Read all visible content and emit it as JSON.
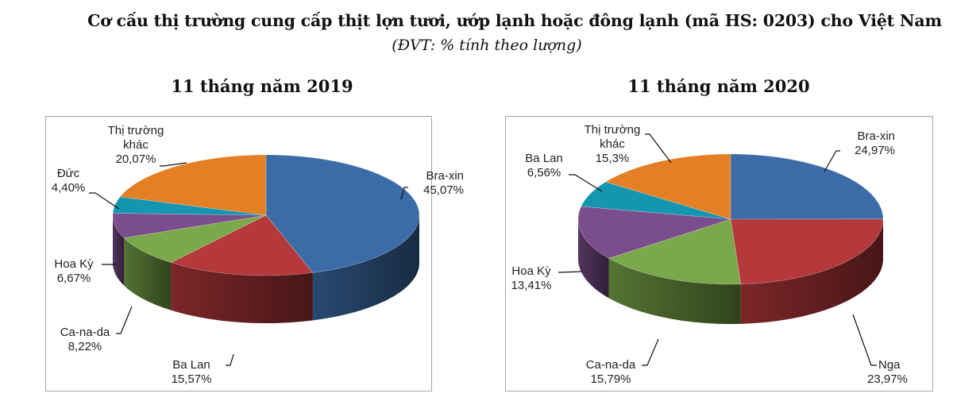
{
  "header": {
    "title": "Cơ cấu thị trường cung cấp thịt lợn tươi, ướp lạnh hoặc đông lạnh (mã HS: 0203) cho Việt Nam",
    "subtitle": "(ĐVT: % tính theo lượng)"
  },
  "colors": {
    "blue": "#3c6ca7",
    "red": "#b5383a",
    "green": "#7aa84a",
    "purple": "#7a4e8c",
    "teal": "#1496b0",
    "orange": "#e47f26",
    "frame": "#a6a6a6"
  },
  "charts": [
    {
      "title": "11 tháng năm 2019",
      "labels": [
        {
          "line1": "Bra-xin",
          "line2": "45,07%"
        },
        {
          "line1": "Ba Lan",
          "line2": "15,57%"
        },
        {
          "line1": "Ca-na-da",
          "line2": "8,22%"
        },
        {
          "line1": "Hoa Kỳ",
          "line2": "6,67%"
        },
        {
          "line1": "Đức",
          "line2": "4,40%"
        },
        {
          "line1": "Thị trường",
          "line2": "khác",
          "line3": "20,07%"
        }
      ]
    },
    {
      "title": "11 tháng năm 2020",
      "labels": [
        {
          "line1": "Bra-xin",
          "line2": "24,97%"
        },
        {
          "line1": "Nga",
          "line2": "23,97%"
        },
        {
          "line1": "Ca-na-da",
          "line2": "15,79%"
        },
        {
          "line1": "Hoa Kỳ",
          "line2": "13,41%"
        },
        {
          "line1": "Ba Lan",
          "line2": "6,56%"
        },
        {
          "line1": "Thị trường",
          "line2": "khác",
          "line3": "15,3%"
        }
      ]
    }
  ],
  "chart_data": [
    {
      "type": "pie",
      "title": "11 tháng năm 2019",
      "subtitle": "(ĐVT: % tính theo lượng)",
      "categories": [
        "Bra-xin",
        "Ba Lan",
        "Ca-na-da",
        "Hoa Kỳ",
        "Đức",
        "Thị trường khác"
      ],
      "values": [
        45.07,
        15.57,
        8.22,
        6.67,
        4.4,
        20.07
      ],
      "colors": [
        "#3c6ca7",
        "#b5383a",
        "#7aa84a",
        "#7a4e8c",
        "#1496b0",
        "#e47f26"
      ],
      "style": "3d-pie",
      "start_angle": "12 o'clock",
      "direction": "clockwise",
      "legend": "none (data labels with leader lines)"
    },
    {
      "type": "pie",
      "title": "11 tháng năm 2020",
      "subtitle": "(ĐVT: % tính theo lượng)",
      "categories": [
        "Bra-xin",
        "Nga",
        "Ca-na-da",
        "Hoa Kỳ",
        "Ba Lan",
        "Thị trường khác"
      ],
      "values": [
        24.97,
        23.97,
        15.79,
        13.41,
        6.56,
        15.3
      ],
      "colors": [
        "#3c6ca7",
        "#b5383a",
        "#7aa84a",
        "#7a4e8c",
        "#1496b0",
        "#e47f26"
      ],
      "style": "3d-pie",
      "start_angle": "12 o'clock",
      "direction": "clockwise",
      "legend": "none (data labels with leader lines)"
    }
  ]
}
